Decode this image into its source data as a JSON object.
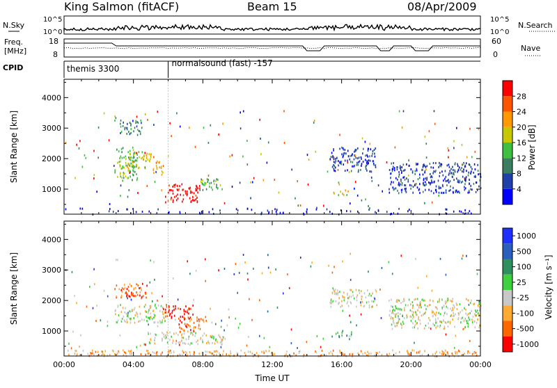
{
  "header": {
    "station": "King Salmon (fitACF)",
    "beam": "Beam 15",
    "date": "08/Apr/2009"
  },
  "strip_labels": {
    "nsky": "N.Sky",
    "nsearch": "N.Search",
    "freq_l1": "Freq.",
    "freq_l2": "[MHz]",
    "nave": "Nave",
    "cpid": "CPID",
    "nsky_ticks": [
      "10^5",
      "10^0"
    ],
    "freq_ticks": [
      "18",
      "8"
    ],
    "nave_ticks": [
      "60",
      "0"
    ]
  },
  "cpid": {
    "programs": [
      {
        "label": "themis 3300",
        "start_hr": 0
      },
      {
        "label": "normalsound (fast) -157",
        "start_hr": 6.0
      }
    ]
  },
  "colors": {
    "power": [
      "#0000ff",
      "#1f3faa",
      "#3a7f5f",
      "#3fbf3f",
      "#c8c800",
      "#ff9900",
      "#ff5500",
      "#ff0000"
    ],
    "velocity": [
      "#1f2fff",
      "#2a5fbf",
      "#2f8f5f",
      "#3fcf3f",
      "#c8c8c8",
      "#ffaa33",
      "#ff6600",
      "#ff0000"
    ]
  },
  "chart_data": [
    {
      "type": "heatmap",
      "panel": "power",
      "ylabel": "Slant Range [km]",
      "xlabel": "",
      "xlim": [
        0,
        24
      ],
      "ylim": [
        180,
        4600
      ],
      "yticks": [
        "1000",
        "2000",
        "3000",
        "4000"
      ],
      "colorbar_label": "Power [dB]",
      "colorbar_ticks": [
        "4",
        "8",
        "12",
        "16",
        "20",
        "24",
        "28"
      ],
      "regions": [
        {
          "t0": 2.9,
          "t1": 4.2,
          "r0": 1300,
          "r1": 2400,
          "level": 3
        },
        {
          "t0": 3.6,
          "t1": 5.0,
          "r0": 1700,
          "r1": 2300,
          "level": 4
        },
        {
          "t0": 3.2,
          "t1": 4.5,
          "r0": 2800,
          "r1": 3300,
          "level": 2
        },
        {
          "t0": 5.1,
          "t1": 5.7,
          "r0": 1500,
          "r1": 2000,
          "level": 5
        },
        {
          "t0": 5.8,
          "t1": 7.8,
          "r0": 600,
          "r1": 1200,
          "level": 7
        },
        {
          "t0": 7.8,
          "t1": 9.2,
          "r0": 1000,
          "r1": 1400,
          "level": 3
        },
        {
          "t0": 15.5,
          "t1": 16.4,
          "r0": 800,
          "r1": 1000,
          "level": 4
        },
        {
          "t0": 15.3,
          "t1": 18.0,
          "r0": 1600,
          "r1": 2400,
          "level": 1
        },
        {
          "t0": 18.7,
          "t1": 24.0,
          "r0": 900,
          "r1": 1900,
          "level": 1
        },
        {
          "t0": 0.0,
          "t1": 24.0,
          "r0": 200,
          "r1": 400,
          "level": 0
        }
      ]
    },
    {
      "type": "heatmap",
      "panel": "velocity",
      "ylabel": "Slant Range [km]",
      "xlabel": "Time UT",
      "xlim": [
        0,
        24
      ],
      "ylim": [
        180,
        4600
      ],
      "xticks": [
        "00:00",
        "04:00",
        "08:00",
        "12:00",
        "16:00",
        "20:00",
        "00:00"
      ],
      "yticks": [
        "1000",
        "2000",
        "3000",
        "4000"
      ],
      "colorbar_label": "Velocity [m s⁻¹]",
      "colorbar_ticks": [
        "1000",
        "500",
        "100",
        "25",
        "-25",
        "-100",
        "-500",
        "-1000"
      ],
      "regions": [
        {
          "t0": 2.9,
          "t1": 4.8,
          "r0": 2100,
          "r1": 2600,
          "level": 6
        },
        {
          "t0": 2.9,
          "t1": 5.8,
          "r0": 1300,
          "r1": 1900,
          "level": 4
        },
        {
          "t0": 5.8,
          "t1": 7.4,
          "r0": 1400,
          "r1": 1900,
          "level": 7
        },
        {
          "t0": 6.6,
          "t1": 8.2,
          "r0": 1000,
          "r1": 1500,
          "level": 6
        },
        {
          "t0": 4.8,
          "t1": 9.3,
          "r0": 600,
          "r1": 1000,
          "level": 4
        },
        {
          "t0": 15.6,
          "t1": 16.6,
          "r0": 850,
          "r1": 1050,
          "level": 3
        },
        {
          "t0": 15.3,
          "t1": 18.0,
          "r0": 1800,
          "r1": 2400,
          "level": 4
        },
        {
          "t0": 18.7,
          "t1": 24.0,
          "r0": 1100,
          "r1": 2100,
          "level": 4
        },
        {
          "t0": 0.0,
          "t1": 24.0,
          "r0": 200,
          "r1": 400,
          "level": 5
        }
      ]
    }
  ]
}
